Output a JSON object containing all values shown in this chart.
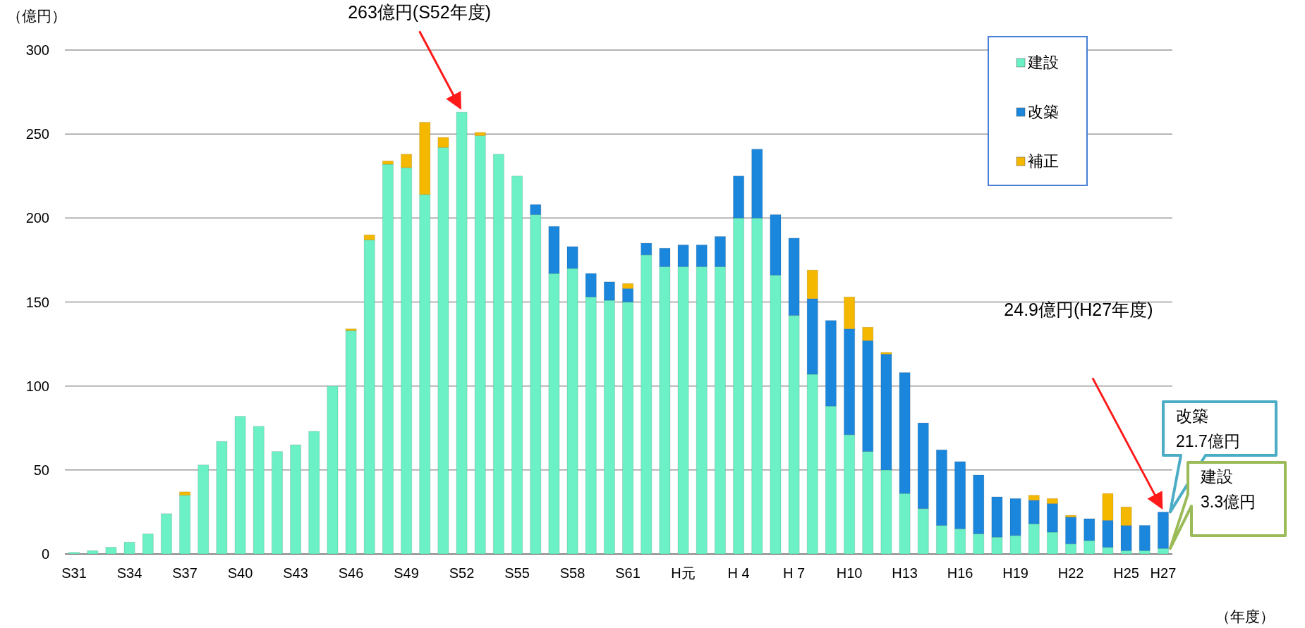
{
  "chart_data": {
    "type": "bar",
    "stacked": true,
    "xlabel": "（年度）",
    "ylabel": "（億円）",
    "categories": [
      "S31",
      null,
      null,
      "S34",
      null,
      null,
      "S37",
      null,
      null,
      "S40",
      null,
      null,
      "S43",
      null,
      null,
      "S46",
      null,
      null,
      "S49",
      null,
      null,
      "S52",
      null,
      null,
      "S55",
      null,
      null,
      "S58",
      null,
      null,
      "S61",
      null,
      null,
      "H元",
      null,
      null,
      "H 4",
      null,
      null,
      "H 7",
      null,
      null,
      "H10",
      null,
      null,
      "H13",
      null,
      null,
      "H16",
      null,
      null,
      "H19",
      null,
      null,
      "H22",
      null,
      null,
      "H25",
      null,
      "H27"
    ],
    "series": [
      {
        "name": "建設",
        "color": "#6cf0c6",
        "values": [
          1,
          2,
          4,
          7,
          12,
          24,
          35,
          53,
          67,
          82,
          76,
          61,
          65,
          73,
          100,
          133,
          187,
          232,
          230,
          214,
          242,
          263,
          249,
          238,
          225,
          202,
          167,
          170,
          153,
          151,
          150,
          178,
          171,
          171,
          171,
          171,
          200,
          200,
          166,
          142,
          107,
          88,
          71,
          61,
          50,
          36,
          27,
          17,
          15,
          12,
          10,
          11,
          18,
          13,
          6,
          8,
          4,
          2,
          2,
          3.3
        ]
      },
      {
        "name": "改築",
        "color": "#1a86dc",
        "values": [
          0,
          0,
          0,
          0,
          0,
          0,
          0,
          0,
          0,
          0,
          0,
          0,
          0,
          0,
          0,
          0,
          0,
          0,
          0,
          0,
          0,
          0,
          0,
          0,
          0,
          6,
          28,
          13,
          14,
          11,
          8,
          7,
          11,
          13,
          13,
          18,
          25,
          41,
          36,
          46,
          45,
          51,
          63,
          66,
          69,
          72,
          51,
          45,
          40,
          35,
          24,
          22,
          14,
          17,
          16,
          13,
          16,
          15,
          15,
          21.7
        ]
      },
      {
        "name": "補正",
        "color": "#f5b800",
        "values": [
          0,
          0,
          0,
          0,
          0,
          0,
          2,
          0,
          0,
          0,
          0,
          0,
          0,
          0,
          0,
          1,
          3,
          2,
          8,
          43,
          6,
          0,
          2,
          0,
          0,
          0,
          0,
          0,
          0,
          0,
          3,
          0,
          0,
          0,
          0,
          0,
          0,
          0,
          0,
          0,
          17,
          0,
          19,
          8,
          1,
          0,
          0,
          0,
          0,
          0,
          0,
          0,
          3,
          3,
          1,
          0,
          16,
          11,
          0,
          0
        ]
      }
    ],
    "ylim": [
      0,
      300
    ],
    "yticks": [
      0,
      50,
      100,
      150,
      200,
      250,
      300
    ],
    "grid": "y",
    "legend": "top right",
    "annotations": [
      {
        "text": "263億円(S52年度)",
        "x": "S52",
        "y": 263
      },
      "24.9億円(H27年度)",
      "改築\n21.7億円",
      "建設\n 3.3億円"
    ]
  }
}
